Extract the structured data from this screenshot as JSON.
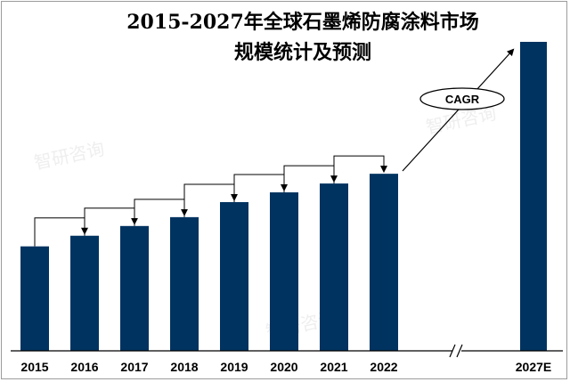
{
  "title": {
    "line1": "2015-2027年全球石墨烯防腐涂料市场",
    "line2": "规模统计及预测"
  },
  "cagr_label": "CAGR",
  "watermark": "智研咨询",
  "colors": {
    "bar": "#003360",
    "axis": "#000000",
    "connector": "#000000"
  },
  "chart_data": {
    "type": "bar",
    "title": "2015-2027年全球石墨烯防腐涂料市场规模统计及预测",
    "categories": [
      "2015",
      "2016",
      "2017",
      "2018",
      "2019",
      "2020",
      "2021",
      "2022",
      "2027E"
    ],
    "values": [
      118,
      130,
      141,
      151,
      168,
      179,
      189,
      200,
      349
    ],
    "xlabel": "",
    "ylabel": "",
    "y_axis_shown": false,
    "axis_break_between": [
      "2022",
      "2027E"
    ],
    "grid": false,
    "annotations": [
      "CAGR"
    ]
  }
}
